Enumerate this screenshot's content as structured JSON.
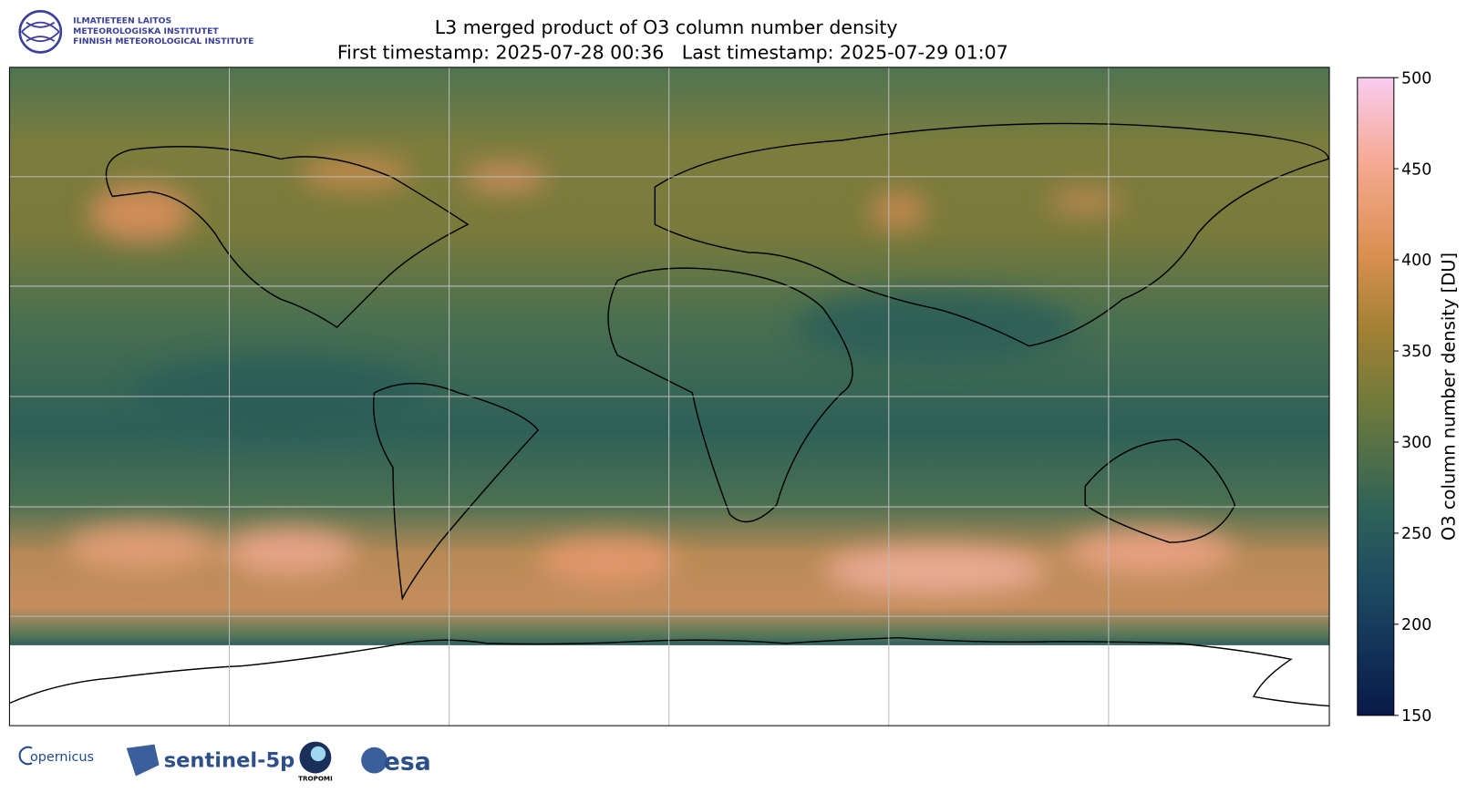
{
  "header": {
    "logo_lines": [
      "ILMATIETEEN LAITOS",
      "METEOROLOGISKA INSTITUTET",
      "FINNISH METEOROLOGICAL INSTITUTE"
    ],
    "title": "L3 merged product of O3 column number density",
    "subtitle": "First timestamp: 2025-07-28 00:36   Last timestamp: 2025-07-29 01:07"
  },
  "colorbar": {
    "label": "O3 column number density [DU]",
    "lim": [
      150,
      500
    ],
    "ticks": [
      150,
      200,
      250,
      300,
      350,
      400,
      450,
      500
    ]
  },
  "footer": {
    "logos": [
      "opernicus",
      "sentinel-5p",
      "TROPOMI",
      "esa"
    ]
  }
}
